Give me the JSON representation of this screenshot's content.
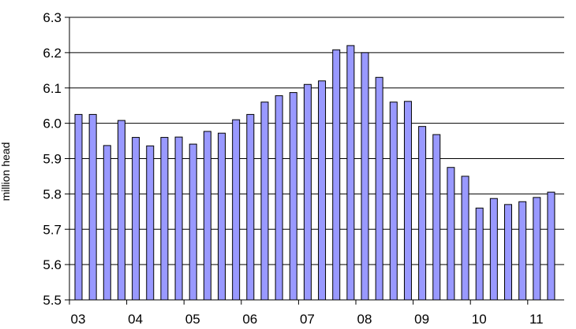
{
  "chart_data": {
    "type": "bar",
    "title": "",
    "xlabel": "",
    "ylabel": "million head",
    "ylim": [
      5.5,
      6.3
    ],
    "yticks": [
      "5.5",
      "5.6",
      "5.7",
      "5.8",
      "5.9",
      "6.0",
      "6.1",
      "6.2",
      "6.3"
    ],
    "xtick_labels": [
      "03",
      "04",
      "05",
      "06",
      "07",
      "08",
      "09",
      "10",
      "11"
    ],
    "bars_per_year": 4,
    "grid": "horizontal",
    "legend": "none",
    "series": [
      {
        "color": "#9999ff",
        "values": [
          6.025,
          6.025,
          5.937,
          6.008,
          5.96,
          5.936,
          5.96,
          5.961,
          5.941,
          5.977,
          5.972,
          6.01,
          6.025,
          6.06,
          6.078,
          6.087,
          6.11,
          6.12,
          6.208,
          6.22,
          6.2,
          6.13,
          6.06,
          6.062,
          5.991,
          5.968,
          5.875,
          5.85,
          5.76,
          5.787,
          5.77,
          5.778,
          5.79,
          5.805
        ]
      }
    ]
  }
}
